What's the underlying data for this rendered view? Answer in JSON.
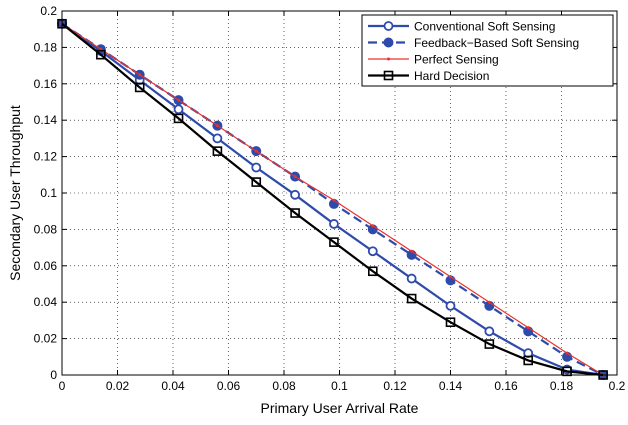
{
  "chart_data": {
    "type": "line",
    "title": "",
    "xlabel": "Primary User Arrival Rate",
    "ylabel": "Secondary User Throughput",
    "xlim": [
      0,
      0.2
    ],
    "ylim": [
      0,
      0.2
    ],
    "xticks": [
      "0",
      "0.02",
      "0.04",
      "0.06",
      "0.08",
      "0.1",
      "0.12",
      "0.14",
      "0.16",
      "0.18",
      "0.2"
    ],
    "yticks": [
      "0",
      "0.02",
      "0.04",
      "0.06",
      "0.08",
      "0.1",
      "0.12",
      "0.14",
      "0.16",
      "0.18",
      "0.2"
    ],
    "grid": true,
    "legend_position": "top-right",
    "x": [
      0,
      0.014,
      0.028,
      0.042,
      0.056,
      0.07,
      0.084,
      0.098,
      0.112,
      0.126,
      0.14,
      0.154,
      0.168,
      0.182,
      0.195
    ],
    "series": [
      {
        "name": "Conventional Soft Sensing",
        "color": "#2e4bab",
        "line": "solid",
        "marker": "open-circle",
        "values": [
          0.193,
          0.178,
          0.162,
          0.146,
          0.13,
          0.114,
          0.099,
          0.083,
          0.068,
          0.053,
          0.038,
          0.024,
          0.012,
          0.003,
          0.0
        ]
      },
      {
        "name": "Feedback−Based Soft Sensing",
        "color": "#2e4bab",
        "line": "dashed",
        "marker": "filled-circle",
        "values": [
          0.193,
          0.179,
          0.165,
          0.151,
          0.137,
          0.123,
          0.109,
          0.094,
          0.08,
          0.066,
          0.052,
          0.038,
          0.024,
          0.01,
          0.0
        ]
      },
      {
        "name": "Perfect Sensing",
        "color": "#e8322b",
        "line": "solid",
        "marker": "dot",
        "values": [
          0.193,
          0.179,
          0.165,
          0.151,
          0.137,
          0.123,
          0.109,
          0.096,
          0.082,
          0.068,
          0.054,
          0.04,
          0.026,
          0.012,
          0.0
        ]
      },
      {
        "name": "Hard Decision",
        "color": "#000000",
        "line": "solid",
        "marker": "open-square",
        "values": [
          0.193,
          0.176,
          0.158,
          0.141,
          0.123,
          0.106,
          0.089,
          0.073,
          0.057,
          0.042,
          0.029,
          0.017,
          0.008,
          0.002,
          0.0
        ]
      }
    ]
  }
}
